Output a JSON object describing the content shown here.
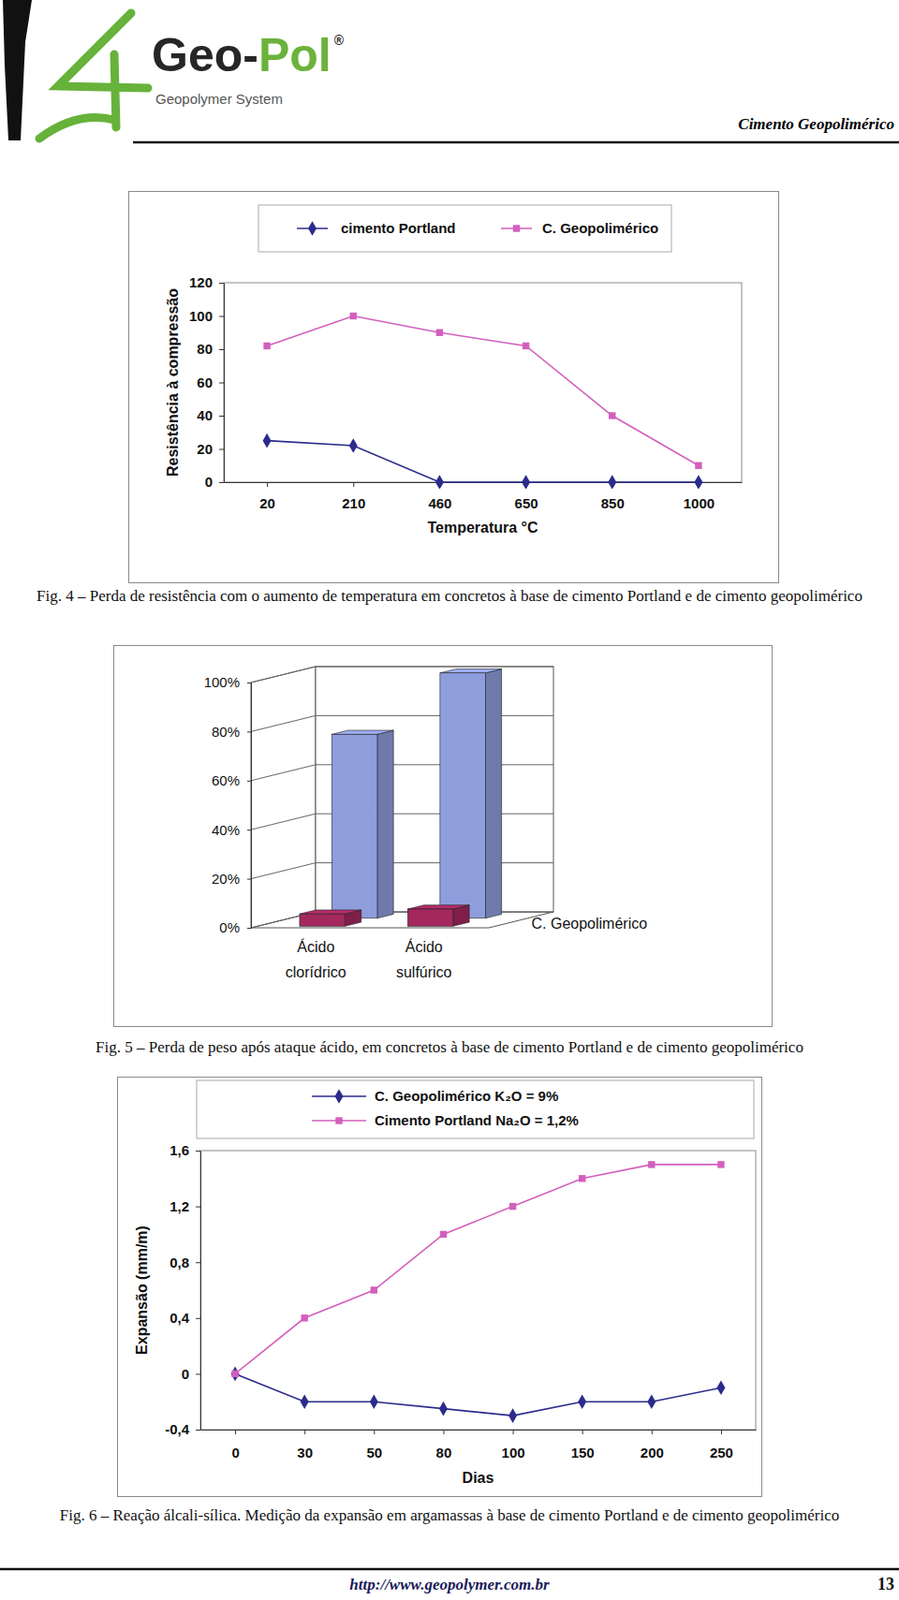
{
  "header": {
    "logo_parts": [
      "Geo-",
      "Pol",
      "®"
    ],
    "tagline": "Geopolymer System",
    "running_title": "Cimento Geopolimérico"
  },
  "chart_data": [
    {
      "type": "line",
      "x_label": "Temperatura °C",
      "y_label": "Resistência à compressão",
      "categories": [
        "20",
        "210",
        "460",
        "650",
        "850",
        "1000"
      ],
      "series": [
        {
          "name": "cimento Portland",
          "color": "#2b2b8c",
          "marker": "diamond",
          "line_style": "solid",
          "values": [
            25,
            22,
            0,
            0,
            0,
            0
          ]
        },
        {
          "name": "C. Geopolimérico",
          "color": "#d35fbd",
          "marker": "square",
          "line_style": "solid",
          "values": [
            82,
            100,
            90,
            82,
            40,
            10
          ]
        }
      ],
      "ylim": [
        0,
        120
      ],
      "yticks": [
        0,
        20,
        40,
        60,
        80,
        100,
        120
      ],
      "grid": false,
      "legend": "top"
    },
    {
      "type": "bar",
      "categories": [
        "Ácido clorídrico",
        "Ácido sulfúrico"
      ],
      "series": [
        {
          "name": "C. Geopolimérico",
          "color": "#a3285e",
          "values": [
            5,
            7
          ]
        },
        {
          "name": null,
          "color": "#8e9ddc",
          "values": [
            75,
            100
          ]
        }
      ],
      "ylim": [
        0,
        100
      ],
      "yticks": [
        {
          "value": 0,
          "label": "0%"
        },
        {
          "value": 20,
          "label": "20%"
        },
        {
          "value": 40,
          "label": "40%"
        },
        {
          "value": 60,
          "label": "60%"
        },
        {
          "value": 80,
          "label": "80%"
        },
        {
          "value": 100,
          "label": "100%"
        }
      ],
      "grid": true
    },
    {
      "type": "line",
      "x_label": "Dias",
      "y_label": "Expansão (mm/m)",
      "categories": [
        "0",
        "30",
        "50",
        "80",
        "100",
        "150",
        "200",
        "250"
      ],
      "series": [
        {
          "name": "C. Geopolimérico K₂O = 9%",
          "color": "#2b2b8c",
          "marker": "diamond",
          "line_style": "solid",
          "values": [
            0,
            -0.2,
            -0.2,
            -0.25,
            -0.3,
            -0.2,
            -0.2,
            -0.1
          ]
        },
        {
          "name": "Cimento Portland Na₂O = 1,2%",
          "color": "#d35fbd",
          "marker": "square",
          "line_style": "solid",
          "values": [
            0,
            0.4,
            0.6,
            1.0,
            1.2,
            1.4,
            1.5,
            1.5
          ]
        }
      ],
      "ylim": [
        -0.4,
        1.6
      ],
      "yticks": [
        {
          "value": -0.4,
          "label": "-0,4"
        },
        0,
        {
          "value": 0.4,
          "label": "0,4"
        },
        {
          "value": 0.8,
          "label": "0,8"
        },
        {
          "value": 1.2,
          "label": "1,2"
        },
        {
          "value": 1.6,
          "label": "1,6"
        }
      ],
      "grid": false,
      "legend": "top"
    }
  ],
  "captions": [
    "Fig. 4 – Perda de resistência com o aumento de temperatura em concretos à base de cimento Portland e de cimento geopolimérico",
    "Fig. 5 – Perda de peso após ataque ácido, em concretos à base de cimento Portland e de cimento geopolimérico",
    "Fig. 6 – Reação álcali-sílica. Medição da expansão em argamassas à base de cimento Portland e de cimento geopolimérico"
  ],
  "footer": {
    "url": "http://www.geopolymer.com.br",
    "page": "13"
  }
}
